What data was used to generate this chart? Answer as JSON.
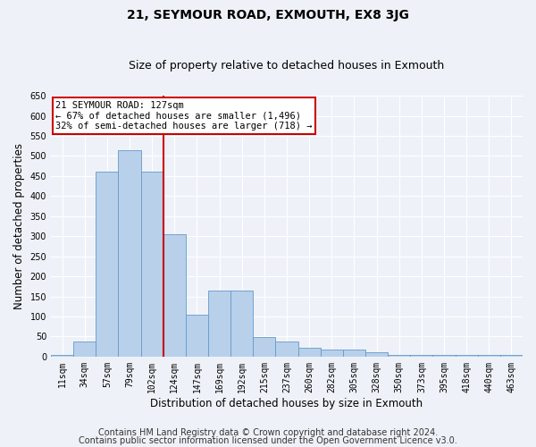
{
  "title": "21, SEYMOUR ROAD, EXMOUTH, EX8 3JG",
  "subtitle": "Size of property relative to detached houses in Exmouth",
  "xlabel": "Distribution of detached houses by size in Exmouth",
  "ylabel": "Number of detached properties",
  "categories": [
    "11sqm",
    "34sqm",
    "57sqm",
    "79sqm",
    "102sqm",
    "124sqm",
    "147sqm",
    "169sqm",
    "192sqm",
    "215sqm",
    "237sqm",
    "260sqm",
    "282sqm",
    "305sqm",
    "328sqm",
    "350sqm",
    "373sqm",
    "395sqm",
    "418sqm",
    "440sqm",
    "463sqm"
  ],
  "values": [
    5,
    38,
    460,
    515,
    460,
    305,
    105,
    165,
    165,
    48,
    38,
    22,
    18,
    18,
    10,
    5,
    3,
    3,
    3,
    3,
    3
  ],
  "bar_color": "#b8d0ea",
  "bar_edge_color": "#6699cc",
  "annotation_text": "21 SEYMOUR ROAD: 127sqm\n← 67% of detached houses are smaller (1,496)\n32% of semi-detached houses are larger (718) →",
  "annotation_box_color": "#ffffff",
  "annotation_box_edge": "#cc0000",
  "ylim": [
    0,
    650
  ],
  "yticks": [
    0,
    50,
    100,
    150,
    200,
    250,
    300,
    350,
    400,
    450,
    500,
    550,
    600,
    650
  ],
  "background_color": "#eef2f8",
  "grid_color": "#ffffff",
  "footer_line1": "Contains HM Land Registry data © Crown copyright and database right 2024.",
  "footer_line2": "Contains public sector information licensed under the Open Government Licence v3.0.",
  "title_fontsize": 10,
  "subtitle_fontsize": 9,
  "axis_label_fontsize": 8.5,
  "tick_fontsize": 7,
  "footer_fontsize": 7,
  "annot_fontsize": 7.5
}
